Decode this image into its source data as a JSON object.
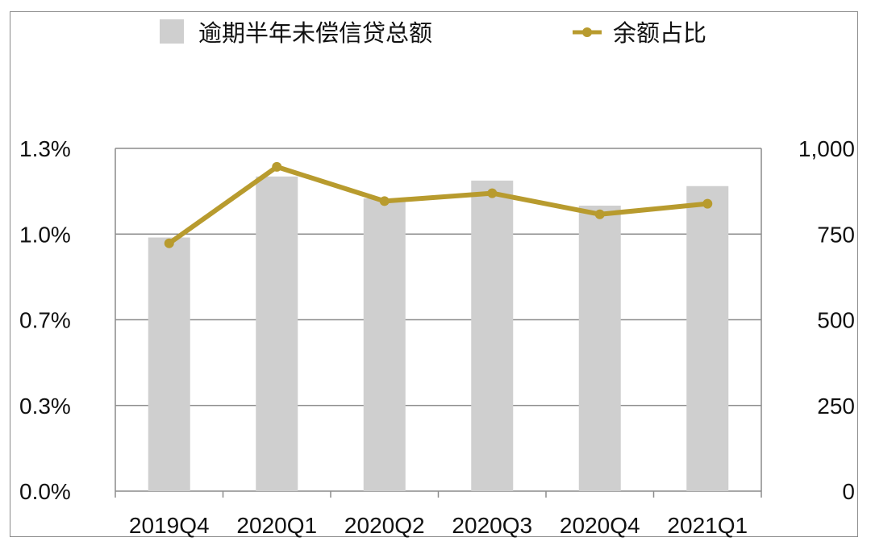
{
  "chart_data": {
    "type": "bar+line",
    "categories": [
      "2019Q4",
      "2020Q1",
      "2020Q2",
      "2020Q3",
      "2020Q4",
      "2021Q1"
    ],
    "series": [
      {
        "name": "逾期半年未偿信贷总额",
        "type": "bar",
        "axis": "right",
        "color": "#cfcfcf",
        "values": [
          740,
          918,
          854,
          906,
          833,
          890
        ]
      },
      {
        "name": "余额占比",
        "type": "line",
        "axis": "left",
        "color": "#b89b2e",
        "values": [
          0.94,
          1.23,
          1.1,
          1.13,
          1.05,
          1.09
        ]
      }
    ],
    "y_left": {
      "ticks": [
        "0.0%",
        "0.3%",
        "0.7%",
        "1.0%",
        "1.3%"
      ],
      "ylim": [
        0,
        1.3
      ]
    },
    "y_right": {
      "ticks": [
        "0",
        "250",
        "500",
        "750",
        "1,000"
      ],
      "ylim": [
        0,
        1000
      ]
    },
    "grid": true,
    "legend_position": "top"
  }
}
